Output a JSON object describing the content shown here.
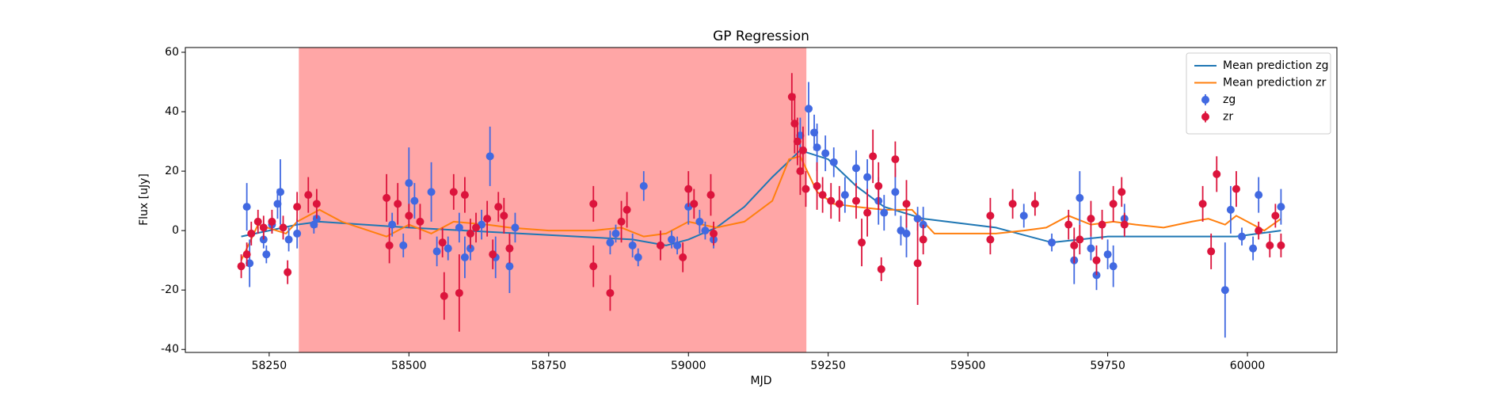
{
  "chart_data": {
    "type": "scatter",
    "title": "GP Regression",
    "xlabel": "MJD",
    "ylabel": "Flux [uJy]",
    "xlim": [
      58100,
      60160
    ],
    "ylim": [
      -41,
      61.6
    ],
    "xticks": [
      58250,
      58500,
      58750,
      59000,
      59250,
      59500,
      59750,
      60000
    ],
    "yticks": [
      -40,
      -20,
      0,
      20,
      40,
      60
    ],
    "legend": "upper right",
    "span": {
      "xmin": 58303,
      "xmax": 59211,
      "color": "#ff0000",
      "alpha": 0.35
    },
    "series": [
      {
        "name": "Mean prediction zg",
        "type": "line",
        "color": "#1f77b4",
        "x": [
          58200,
          58300,
          58340,
          58500,
          58700,
          58900,
          58960,
          59000,
          59050,
          59100,
          59150,
          59200,
          59250,
          59300,
          59350,
          59420,
          59550,
          59650,
          59750,
          59900,
          59980,
          60060
        ],
        "values": [
          -2,
          2,
          3,
          1,
          -1,
          -3,
          -5,
          -3,
          1,
          8,
          18,
          27,
          24,
          15,
          8,
          4,
          1,
          -4,
          -2,
          -2,
          -2,
          0
        ]
      },
      {
        "name": "Mean prediction zr",
        "type": "line",
        "color": "#ff7f0e",
        "x": [
          58200,
          58230,
          58280,
          58300,
          58340,
          58380,
          58460,
          58500,
          58540,
          58580,
          58640,
          58680,
          58750,
          58830,
          58880,
          58920,
          58960,
          59000,
          59050,
          59100,
          59150,
          59180,
          59200,
          59230,
          59260,
          59300,
          59350,
          59400,
          59440,
          59500,
          59550,
          59600,
          59640,
          59680,
          59720,
          59760,
          59800,
          59850,
          59900,
          59930,
          59960,
          59980,
          60000,
          60030,
          60060
        ],
        "values": [
          -10,
          2,
          -1,
          3,
          7,
          3,
          -2,
          2,
          -1,
          3,
          2,
          1,
          0,
          0,
          1,
          -2,
          -1,
          3,
          1,
          3,
          10,
          24,
          25,
          13,
          9,
          8,
          7,
          7,
          -1,
          -1,
          -1,
          0,
          1,
          5,
          2,
          3,
          2,
          1,
          3,
          4,
          2,
          5,
          3,
          0,
          4
        ]
      },
      {
        "name": "zg",
        "type": "errorbar",
        "color": "#4169e1",
        "x": [
          58210,
          58215,
          58240,
          58245,
          58255,
          58265,
          58270,
          58285,
          58300,
          58330,
          58335,
          58470,
          58490,
          58500,
          58510,
          58540,
          58550,
          58570,
          58590,
          58600,
          58610,
          58630,
          58645,
          58655,
          58680,
          58690,
          58860,
          58870,
          58900,
          58910,
          58920,
          58970,
          58980,
          59000,
          59020,
          59030,
          59045,
          59200,
          59215,
          59225,
          59230,
          59245,
          59260,
          59280,
          59300,
          59320,
          59340,
          59350,
          59370,
          59380,
          59390,
          59410,
          59420,
          59600,
          59650,
          59690,
          59700,
          59720,
          59730,
          59750,
          59760,
          59780,
          59960,
          59970,
          59990,
          60010,
          60020,
          60060
        ],
        "values": [
          8,
          -11,
          -3,
          -8,
          2,
          9,
          13,
          -3,
          -1,
          2,
          4,
          2,
          -5,
          16,
          10,
          13,
          -7,
          -6,
          1,
          -9,
          -6,
          2,
          25,
          -9,
          -12,
          1,
          -4,
          -1,
          -5,
          -9,
          15,
          -3,
          -5,
          8,
          3,
          0,
          -3,
          32,
          41,
          33,
          28,
          26,
          23,
          12,
          21,
          18,
          10,
          6,
          13,
          0,
          -1,
          4,
          2,
          5,
          -4,
          -10,
          11,
          -6,
          -15,
          -8,
          -12,
          4,
          -20,
          7,
          -2,
          -6,
          12,
          8
        ],
        "errors": [
          8,
          8,
          3,
          3,
          3,
          5,
          11,
          4,
          5,
          3,
          3,
          4,
          4,
          12,
          6,
          10,
          5,
          4,
          5,
          7,
          4,
          5,
          10,
          7,
          9,
          5,
          4,
          3,
          4,
          3,
          5,
          3,
          3,
          6,
          4,
          3,
          3,
          6,
          9,
          6,
          8,
          6,
          5,
          6,
          6,
          6,
          8,
          6,
          8,
          5,
          8,
          4,
          6,
          4,
          3,
          8,
          9,
          4,
          5,
          5,
          7,
          5,
          16,
          8,
          3,
          4,
          6,
          6
        ]
      },
      {
        "name": "zr",
        "type": "errorbar",
        "color": "#dc143c",
        "x": [
          58200,
          58210,
          58218,
          58230,
          58240,
          58255,
          58275,
          58283,
          58300,
          58320,
          58335,
          58460,
          58465,
          58480,
          58500,
          58520,
          58560,
          58563,
          58580,
          58590,
          58600,
          58610,
          58620,
          58640,
          58650,
          58660,
          58670,
          58680,
          58830,
          58830,
          58860,
          58880,
          58890,
          58950,
          58990,
          59000,
          59010,
          59040,
          59045,
          59185,
          59190,
          59195,
          59200,
          59205,
          59210,
          59230,
          59240,
          59255,
          59270,
          59300,
          59310,
          59320,
          59330,
          59340,
          59345,
          59370,
          59390,
          59410,
          59420,
          59540,
          59540,
          59580,
          59620,
          59680,
          59690,
          59700,
          59720,
          59730,
          59740,
          59760,
          59775,
          59780,
          59920,
          59935,
          59945,
          59980,
          60020,
          60040,
          60050,
          60060
        ],
        "values": [
          -12,
          -8,
          -1,
          3,
          1,
          3,
          1,
          -14,
          8,
          12,
          9,
          11,
          -5,
          9,
          5,
          3,
          -4,
          -22,
          13,
          -21,
          12,
          -1,
          1,
          4,
          -8,
          8,
          5,
          -6,
          9,
          -12,
          -21,
          3,
          7,
          -5,
          -9,
          14,
          9,
          12,
          -1,
          45,
          36,
          30,
          20,
          27,
          14,
          15,
          12,
          10,
          9,
          10,
          -4,
          6,
          25,
          15,
          -13,
          24,
          9,
          -11,
          -3,
          5,
          -3,
          9,
          9,
          2,
          -5,
          -3,
          4,
          -10,
          2,
          9,
          13,
          2,
          9,
          -7,
          19,
          14,
          0,
          -5,
          5,
          -5
        ],
        "errors": [
          4,
          4,
          4,
          4,
          4,
          4,
          4,
          4,
          5,
          6,
          5,
          8,
          6,
          7,
          4,
          6,
          5,
          8,
          6,
          13,
          6,
          5,
          5,
          6,
          5,
          5,
          6,
          5,
          6,
          7,
          6,
          7,
          6,
          5,
          5,
          6,
          5,
          7,
          4,
          8,
          10,
          8,
          8,
          8,
          6,
          8,
          6,
          6,
          6,
          6,
          8,
          8,
          9,
          8,
          4,
          6,
          8,
          14,
          5,
          6,
          5,
          5,
          4,
          5,
          6,
          5,
          6,
          5,
          5,
          6,
          5,
          4,
          6,
          6,
          6,
          6,
          3,
          4,
          4,
          4
        ]
      }
    ]
  }
}
